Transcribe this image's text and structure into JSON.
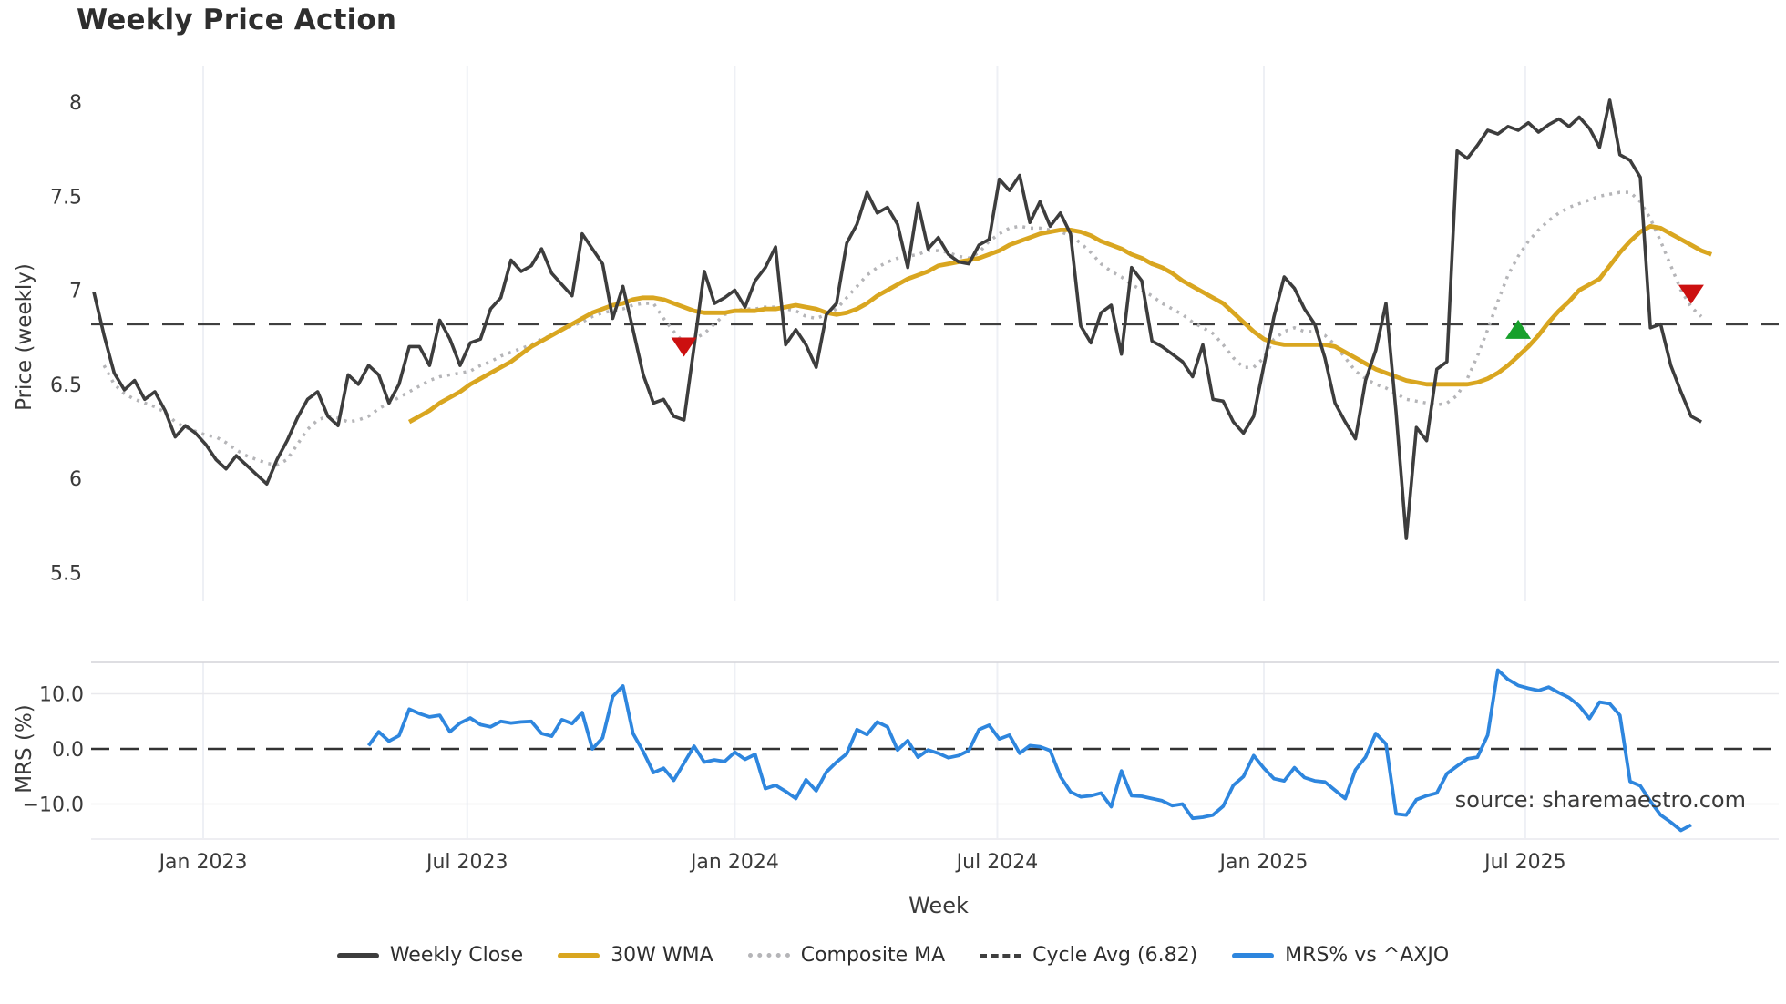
{
  "title": "Weekly Price Action",
  "watermark": "source: sharemaestro.com",
  "axes": {
    "price_label": "Price (weekly)",
    "mrs_label": "MRS (%)",
    "x_label": "Week"
  },
  "legend": {
    "items": [
      {
        "label": "Weekly Close"
      },
      {
        "label": "30W WMA"
      },
      {
        "label": "Composite MA"
      },
      {
        "label": "Cycle Avg (6.82)"
      },
      {
        "label": "MRS% vs ^AXJO"
      }
    ]
  },
  "colors": {
    "close": "#3d3d3d",
    "wma": "#d9a620",
    "composite": "#b5b5b8",
    "cycle_avg": "#3f3f3f",
    "mrs": "#2e86de",
    "marker_down": "#cc1010",
    "marker_up": "#17a02b",
    "grid": "#eef0f5",
    "mrs_grid": "#e9e9ed",
    "panel_border": "#d3d3d8",
    "text": "#3a3a3a",
    "watermark": "#9a9a9a"
  },
  "chart_data": [
    {
      "type": "line",
      "panel": "price",
      "title": "Weekly Price Action",
      "ylabel": "Price (weekly)",
      "ylim": [
        5.45,
        8.2
      ],
      "yticks": {
        "values": [
          8,
          7.5,
          7,
          6.5,
          6,
          5.5
        ],
        "labels": [
          "8",
          "7.5",
          "7",
          "6.5",
          "6",
          "5.5"
        ]
      },
      "xticks": {
        "weeks": [
          10.75,
          36.7,
          63.0,
          88.8,
          115.0,
          140.7
        ],
        "labels": [
          "Jan 2023",
          "Jul 2023",
          "Jan 2024",
          "Jul 2024",
          "Jan 2025",
          "Jul 2025"
        ]
      },
      "grid": "vertical-only",
      "cycle_avg": 6.82,
      "series": [
        {
          "name": "Weekly Close",
          "start_week": 0,
          "values": [
            6.99,
            6.76,
            6.56,
            6.47,
            6.52,
            6.42,
            6.46,
            6.36,
            6.22,
            6.28,
            6.24,
            6.18,
            6.1,
            6.05,
            6.12,
            6.07,
            6.02,
            5.97,
            6.1,
            6.2,
            6.32,
            6.42,
            6.46,
            6.33,
            6.28,
            6.55,
            6.5,
            6.6,
            6.55,
            6.4,
            6.5,
            6.7,
            6.7,
            6.6,
            6.84,
            6.74,
            6.6,
            6.72,
            6.74,
            6.9,
            6.96,
            7.16,
            7.1,
            7.13,
            7.22,
            7.09,
            7.03,
            6.97,
            7.3,
            7.22,
            7.14,
            6.85,
            7.02,
            6.79,
            6.55,
            6.4,
            6.42,
            6.33,
            6.31,
            6.7,
            7.1,
            6.93,
            6.96,
            7.0,
            6.91,
            7.05,
            7.12,
            7.23,
            6.71,
            6.79,
            6.71,
            6.59,
            6.87,
            6.93,
            7.25,
            7.35,
            7.52,
            7.41,
            7.44,
            7.35,
            7.12,
            7.46,
            7.22,
            7.28,
            7.19,
            7.15,
            7.14,
            7.24,
            7.27,
            7.59,
            7.53,
            7.61,
            7.36,
            7.47,
            7.34,
            7.41,
            7.3,
            6.81,
            6.72,
            6.88,
            6.92,
            6.66,
            7.12,
            7.05,
            6.73,
            6.7,
            6.66,
            6.62,
            6.54,
            6.71,
            6.42,
            6.41,
            6.3,
            6.24,
            6.33,
            6.6,
            6.86,
            7.07,
            7.01,
            6.9,
            6.82,
            6.64,
            6.4,
            6.3,
            6.21,
            6.52,
            6.68,
            6.93,
            6.35,
            5.68,
            6.27,
            6.2,
            6.58,
            6.62,
            7.74,
            7.7,
            7.77,
            7.85,
            7.83,
            7.87,
            7.85,
            7.89,
            7.84,
            7.88,
            7.91,
            7.87,
            7.92,
            7.86,
            7.76,
            8.01,
            7.72,
            7.69,
            7.6,
            6.8,
            6.82,
            6.6,
            6.46,
            6.33,
            6.3
          ]
        },
        {
          "name": "30W WMA",
          "start_week": 31,
          "values": [
            6.3,
            6.33,
            6.36,
            6.4,
            6.43,
            6.46,
            6.5,
            6.53,
            6.56,
            6.59,
            6.62,
            6.66,
            6.7,
            6.73,
            6.76,
            6.79,
            6.82,
            6.85,
            6.88,
            6.9,
            6.92,
            6.93,
            6.95,
            6.96,
            6.96,
            6.95,
            6.93,
            6.91,
            6.89,
            6.88,
            6.88,
            6.88,
            6.89,
            6.89,
            6.89,
            6.9,
            6.9,
            6.91,
            6.92,
            6.91,
            6.9,
            6.88,
            6.87,
            6.88,
            6.9,
            6.93,
            6.97,
            7.0,
            7.03,
            7.06,
            7.08,
            7.1,
            7.13,
            7.14,
            7.15,
            7.16,
            7.17,
            7.19,
            7.21,
            7.24,
            7.26,
            7.28,
            7.3,
            7.31,
            7.32,
            7.32,
            7.31,
            7.29,
            7.26,
            7.24,
            7.22,
            7.19,
            7.17,
            7.14,
            7.12,
            7.09,
            7.05,
            7.02,
            6.99,
            6.96,
            6.93,
            6.88,
            6.83,
            6.78,
            6.74,
            6.72,
            6.71,
            6.71,
            6.71,
            6.71,
            6.71,
            6.7,
            6.67,
            6.64,
            6.61,
            6.58,
            6.56,
            6.54,
            6.52,
            6.51,
            6.5,
            6.5,
            6.5,
            6.5,
            6.5,
            6.51,
            6.53,
            6.56,
            6.6,
            6.65,
            6.7,
            6.76,
            6.83,
            6.89,
            6.94,
            7.0,
            7.03,
            7.06,
            7.13,
            7.2,
            7.26,
            7.31,
            7.34,
            7.33,
            7.3,
            7.27,
            7.24,
            7.21,
            7.19
          ]
        },
        {
          "name": "Composite MA",
          "start_week": 1,
          "values": [
            6.6,
            6.5,
            6.45,
            6.42,
            6.4,
            6.38,
            6.35,
            6.3,
            6.27,
            6.25,
            6.23,
            6.22,
            6.19,
            6.15,
            6.12,
            6.1,
            6.08,
            6.07,
            6.1,
            6.18,
            6.26,
            6.31,
            6.33,
            6.32,
            6.3,
            6.31,
            6.33,
            6.37,
            6.4,
            6.43,
            6.46,
            6.49,
            6.52,
            6.54,
            6.55,
            6.56,
            6.57,
            6.6,
            6.62,
            6.65,
            6.67,
            6.69,
            6.71,
            6.74,
            6.76,
            6.79,
            6.81,
            6.83,
            6.86,
            6.88,
            6.89,
            6.9,
            6.92,
            6.93,
            6.93,
            6.85,
            6.78,
            6.72,
            6.74,
            6.77,
            6.82,
            6.87,
            6.89,
            6.9,
            6.9,
            6.91,
            6.91,
            6.9,
            6.89,
            6.86,
            6.85,
            6.87,
            6.9,
            6.96,
            7.02,
            7.08,
            7.12,
            7.15,
            7.17,
            7.18,
            7.19,
            7.21,
            7.21,
            7.2,
            7.18,
            7.17,
            7.2,
            7.26,
            7.3,
            7.33,
            7.34,
            7.33,
            7.33,
            7.32,
            7.31,
            7.29,
            7.25,
            7.2,
            7.14,
            7.1,
            7.07,
            7.03,
            7.0,
            6.97,
            6.93,
            6.9,
            6.87,
            6.83,
            6.8,
            6.77,
            6.71,
            6.64,
            6.59,
            6.59,
            6.64,
            6.74,
            6.78,
            6.8,
            6.78,
            6.78,
            6.76,
            6.71,
            6.64,
            6.57,
            6.53,
            6.5,
            6.48,
            6.45,
            6.42,
            6.41,
            6.4,
            6.39,
            6.4,
            6.44,
            6.53,
            6.65,
            6.79,
            6.94,
            7.08,
            7.18,
            7.26,
            7.32,
            7.37,
            7.41,
            7.44,
            7.46,
            7.48,
            7.5,
            7.51,
            7.52,
            7.52,
            7.47,
            7.38,
            7.26,
            7.13,
            7.0,
            6.91,
            6.86
          ]
        }
      ],
      "markers": [
        {
          "week": 58,
          "price": 6.7,
          "direction": "down"
        },
        {
          "week": 140,
          "price": 6.79,
          "direction": "up"
        },
        {
          "week": 157,
          "price": 6.98,
          "direction": "down"
        }
      ]
    },
    {
      "type": "line",
      "panel": "mrs",
      "ylabel": "MRS (%)",
      "ylim": [
        -16.4,
        15.7
      ],
      "yticks": {
        "values": [
          10,
          0,
          -10
        ],
        "labels": [
          "10.0",
          "0.0",
          "−10.0"
        ]
      },
      "zero_line_dashed": true,
      "series": [
        {
          "name": "MRS% vs ^AXJO",
          "start_week": 27,
          "values": [
            0.6,
            3.1,
            1.4,
            2.4,
            7.2,
            6.4,
            5.8,
            6.1,
            3.1,
            4.7,
            5.6,
            4.4,
            4.0,
            5.0,
            4.7,
            4.9,
            5.0,
            2.8,
            2.3,
            5.3,
            4.6,
            6.6,
            0.0,
            2.0,
            9.5,
            11.4,
            2.8,
            -0.5,
            -4.3,
            -3.5,
            -5.7,
            -2.6,
            0.5,
            -2.4,
            -2.0,
            -2.3,
            -0.6,
            -1.9,
            -1.0,
            -7.2,
            -6.6,
            -7.7,
            -9.0,
            -5.6,
            -7.6,
            -4.2,
            -2.4,
            -0.9,
            3.5,
            2.6,
            4.9,
            4.0,
            -0.2,
            1.5,
            -1.5,
            -0.2,
            -0.8,
            -1.6,
            -1.2,
            -0.3,
            3.5,
            4.3,
            1.8,
            2.5,
            -0.8,
            0.6,
            0.4,
            -0.3,
            -5.0,
            -7.8,
            -8.7,
            -8.5,
            -8.0,
            -10.5,
            -4.0,
            -8.5,
            -8.6,
            -9.0,
            -9.4,
            -10.3,
            -10.0,
            -12.6,
            -12.4,
            -12.0,
            -10.4,
            -6.6,
            -5.0,
            -1.2,
            -3.5,
            -5.4,
            -5.8,
            -3.4,
            -5.2,
            -5.8,
            -6.0,
            -7.5,
            -9.0,
            -3.8,
            -1.5,
            2.8,
            0.9,
            -11.8,
            -12.0,
            -9.2,
            -8.5,
            -8.0,
            -4.5,
            -3.1,
            -1.8,
            -1.5,
            2.5,
            14.3,
            12.6,
            11.5,
            11.0,
            10.6,
            11.2,
            10.2,
            9.3,
            7.8,
            5.5,
            8.5,
            8.2,
            6.1,
            -5.9,
            -6.7,
            -9.5,
            -12.0,
            -13.3,
            -14.8,
            -13.8
          ]
        }
      ]
    }
  ]
}
